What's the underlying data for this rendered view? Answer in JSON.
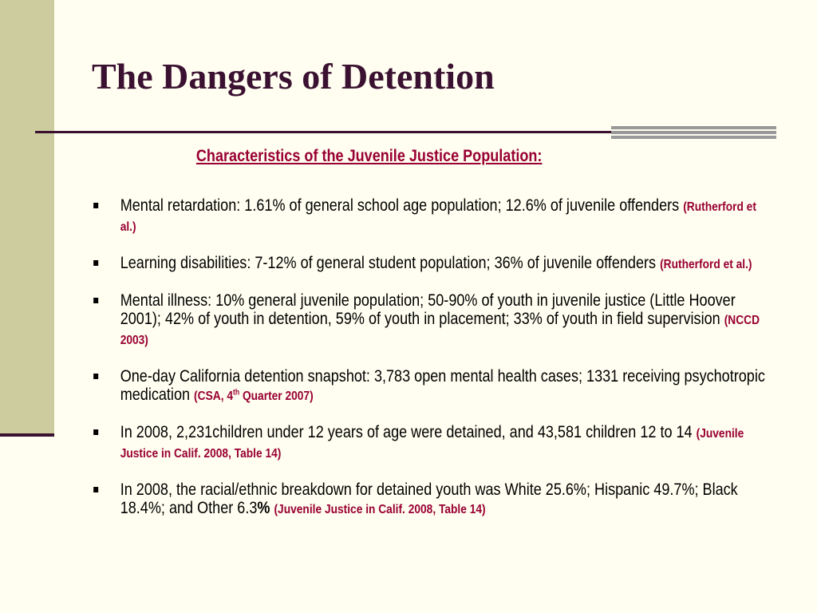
{
  "slide": {
    "title": "The Dangers of Detention",
    "subtitle": "Characteristics of the Juvenile Justice Population:"
  },
  "bullets": [
    {
      "text": "Mental retardation: 1.61% of general school age population; 12.6% of juvenile offenders ",
      "citation": "(Rutherford et al.)"
    },
    {
      "text": "Learning disabilities: 7-12% of general student population; 36% of juvenile offenders ",
      "citation": "(Rutherford et al.)"
    },
    {
      "text": "Mental illness: 10% general juvenile population; 50-90% of youth in juvenile justice (Little Hoover 2001); 42% of youth in detention, 59% of youth in placement; 33% of youth in field supervision ",
      "citation": "(NCCD  2003)"
    },
    {
      "text": "One-day California detention snapshot: 3,783 open mental health cases; 1331 receiving psychotropic medication ",
      "citation_pre": "(CSA, 4",
      "citation_sup": "th",
      "citation_post": " Quarter 2007)"
    },
    {
      "text": "In 2008, 2,231children under 12 years of age were detained,  and 43,581 children 12 to 14 ",
      "citation": "(Juvenile Justice in Calif. 2008, Table 14)"
    },
    {
      "text": "In 2008, the racial/ethnic breakdown for detained youth was White 25.6%; Hispanic 49.7%; Black 18.4%; and Other 6.3",
      "text_bold_tail": "% ",
      "citation": "(Juvenile Justice in Calif. 2008, Table 14)"
    }
  ],
  "colors": {
    "background": "#fffef0",
    "title": "#3b1131",
    "accent_bar": "#cccc9e",
    "accent_stripes": "#999999",
    "citation": "#990033"
  }
}
